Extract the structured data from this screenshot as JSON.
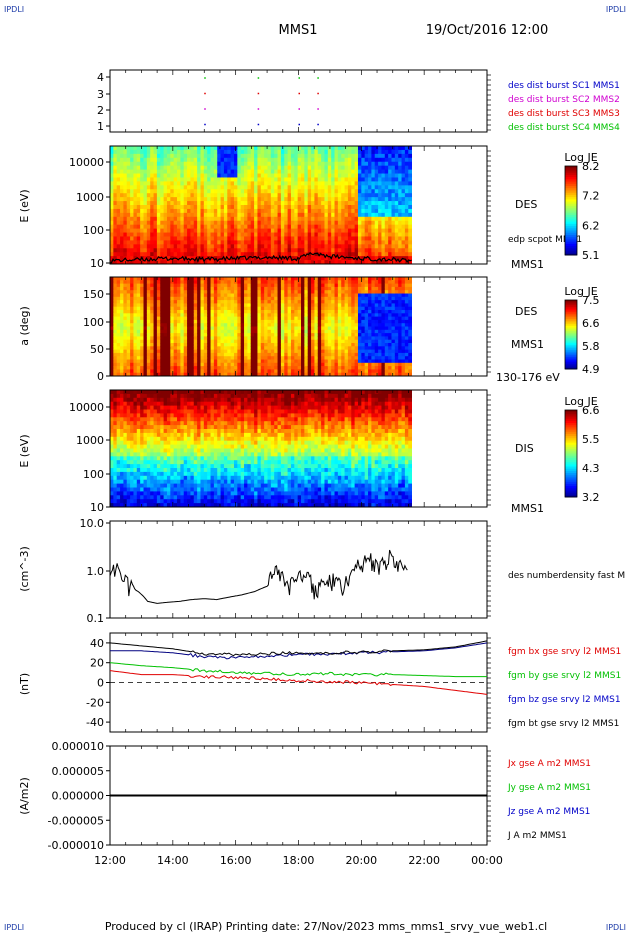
{
  "header": {
    "spacecraft": "MMS1",
    "date_time": "19/Oct/2016 12:00",
    "corner_tag": "IPDLI"
  },
  "footer": {
    "text": "Produced by cl (IRAP)   Printing date: 27/Nov/2023   mms_mms1_srvy_vue_web1.cl"
  },
  "time_axis": {
    "ticks": [
      "12:00",
      "14:00",
      "16:00",
      "18:00",
      "20:00",
      "22:00",
      "00:00"
    ],
    "data_end_hour": 21.6
  },
  "colors": {
    "blue": "#0000c8",
    "magenta": "#d000d0",
    "red": "#e00000",
    "green": "#00c000",
    "black": "#000000",
    "navy": "#000080"
  },
  "panels": {
    "burst": {
      "yticks": [
        "4",
        "3",
        "2",
        "1"
      ],
      "labels": [
        {
          "text": "des dist burst SC1 MMS1",
          "color": "#0000c8"
        },
        {
          "text": "des dist burst SC2 MMS2",
          "color": "#d000d0"
        },
        {
          "text": "des dist burst SC3 MMS3",
          "color": "#e00000"
        },
        {
          "text": "des dist burst SC4 MMS4",
          "color": "#00c000"
        }
      ]
    },
    "des_energy": {
      "ylabel": "E (eV)",
      "yticks": [
        "10000",
        "1000",
        "100",
        "10"
      ],
      "species": "DES",
      "overlay": "edp scpot MMS1",
      "sc": "MMS1",
      "cbar_title": "Log JE",
      "cbar_ticks": [
        "8.2",
        "7.2",
        "6.2",
        "5.1"
      ]
    },
    "des_pitch": {
      "ylabel": "a (deg)",
      "yticks": [
        "150",
        "100",
        "50",
        "0"
      ],
      "species": "DES",
      "sc": "MMS1",
      "energy_range": "130-176 eV",
      "cbar_title": "Log JE",
      "cbar_ticks": [
        "7.5",
        "6.6",
        "5.8",
        "4.9"
      ]
    },
    "dis_energy": {
      "ylabel": "E (eV)",
      "yticks": [
        "10000",
        "1000",
        "100",
        "10"
      ],
      "species": "DIS",
      "sc": "MMS1",
      "cbar_title": "Log JE",
      "cbar_ticks": [
        "6.6",
        "5.5",
        "4.3",
        "3.2"
      ]
    },
    "density": {
      "ylabel": "(cm^-3)",
      "yticks": [
        "10.0",
        "1.0",
        "0.1"
      ],
      "label": "des numberdensity fast M"
    },
    "bfield": {
      "ylabel": "(nT)",
      "yticks": [
        "40",
        "20",
        "0",
        "-20",
        "-40"
      ],
      "labels": [
        {
          "text": "fgm bx gse srvy l2 MMS1",
          "color": "#e00000"
        },
        {
          "text": "fgm by gse srvy l2 MMS1",
          "color": "#00c000"
        },
        {
          "text": "fgm bz gse srvy l2 MMS1",
          "color": "#0000c8"
        },
        {
          "text": "fgm bt gse srvy l2 MMS1",
          "color": "#000000"
        }
      ]
    },
    "current": {
      "ylabel": "(A/m2)",
      "yticks": [
        "0.000010",
        "0.000005",
        "0.000000",
        "-0.000005",
        "-0.000010"
      ],
      "labels": [
        {
          "text": "Jx gse A m2 MMS1",
          "color": "#e00000"
        },
        {
          "text": "Jy gse A m2 MMS1",
          "color": "#00c000"
        },
        {
          "text": "Jz gse A m2 MMS1",
          "color": "#0000c8"
        },
        {
          "text": "J A m2 MMS1",
          "color": "#000000"
        }
      ]
    }
  },
  "chart_data": [
    {
      "type": "scatter",
      "title": "",
      "ylim": [
        0.5,
        4.5
      ],
      "xlim_hours": [
        12,
        24
      ],
      "series": [
        {
          "name": "des dist burst SC1 MMS1",
          "x": [
            15.0,
            16.7,
            18.0,
            18.6
          ],
          "y": [
            1,
            1,
            1,
            1
          ]
        },
        {
          "name": "des dist burst SC2 MMS2",
          "x": [
            15.0,
            16.7,
            18.0,
            18.6
          ],
          "y": [
            2,
            2,
            2,
            2
          ]
        },
        {
          "name": "des dist burst SC3 MMS3",
          "x": [
            15.0,
            16.7,
            18.0,
            18.6
          ],
          "y": [
            3,
            3,
            3,
            3
          ]
        },
        {
          "name": "des dist burst SC4 MMS4",
          "x": [
            15.0,
            16.7,
            18.0,
            18.6
          ],
          "y": [
            4,
            4,
            4,
            4
          ]
        }
      ]
    },
    {
      "type": "heatmap",
      "ylabel": "E (eV)",
      "ylim": [
        10,
        30000
      ],
      "ylog": true,
      "zlim": [
        5.1,
        8.2
      ],
      "overlay_line": {
        "name": "edp scpot MMS1",
        "x_hours": [
          12.0,
          13.0,
          14.0,
          15.0,
          16.0,
          17.0,
          18.0,
          18.5,
          19.0,
          20.0,
          21.0,
          21.5
        ],
        "y_ev": [
          12,
          13,
          14,
          13,
          14,
          15,
          14,
          20,
          16,
          14,
          13,
          12
        ]
      }
    },
    {
      "type": "heatmap",
      "ylabel": "a (deg)",
      "ylim": [
        0,
        180
      ],
      "zlim": [
        4.9,
        7.5
      ]
    },
    {
      "type": "heatmap",
      "ylabel": "E (eV)",
      "ylim": [
        10,
        30000
      ],
      "ylog": true,
      "zlim": [
        3.2,
        6.6
      ]
    },
    {
      "type": "line",
      "ylabel": "(cm^-3)",
      "ylim": [
        0.1,
        10
      ],
      "ylog": true,
      "series": [
        {
          "name": "des numberdensity fast M",
          "x": [
            12.0,
            12.3,
            12.6,
            12.9,
            13.2,
            13.5,
            13.8,
            14.2,
            14.6,
            15.0,
            15.4,
            15.8,
            16.2,
            16.6,
            17.0,
            17.3,
            17.6,
            17.9,
            18.2,
            18.5,
            18.8,
            19.1,
            19.4,
            19.7,
            20.0,
            20.3,
            20.6,
            20.9,
            21.2,
            21.5
          ],
          "y": [
            1.2,
            1.0,
            0.45,
            0.35,
            0.22,
            0.2,
            0.21,
            0.22,
            0.24,
            0.25,
            0.24,
            0.27,
            0.3,
            0.35,
            0.45,
            1.1,
            0.4,
            0.6,
            0.9,
            0.35,
            0.5,
            0.6,
            0.4,
            0.8,
            1.4,
            1.6,
            1.1,
            1.8,
            1.3,
            0.8
          ]
        }
      ]
    },
    {
      "type": "line",
      "ylabel": "(nT)",
      "ylim": [
        -50,
        50
      ],
      "series": [
        {
          "name": "fgm bx gse srvy l2 MMS1",
          "x": [
            12,
            13,
            14,
            15,
            16,
            17,
            18,
            19,
            20,
            21,
            22,
            23,
            24
          ],
          "y": [
            12,
            8,
            8,
            6,
            5,
            4,
            2,
            1,
            0,
            -2,
            -4,
            -8,
            -12
          ]
        },
        {
          "name": "fgm by gse srvy l2 MMS1",
          "x": [
            12,
            13,
            14,
            15,
            16,
            17,
            18,
            19,
            20,
            21,
            22,
            23,
            24
          ],
          "y": [
            20,
            17,
            15,
            12,
            10,
            9,
            8,
            9,
            8,
            8,
            7,
            6,
            6
          ]
        },
        {
          "name": "fgm bz gse srvy l2 MMS1",
          "x": [
            12,
            13,
            14,
            15,
            16,
            17,
            18,
            19,
            20,
            21,
            22,
            23,
            24
          ],
          "y": [
            32,
            32,
            30,
            26,
            25,
            27,
            28,
            29,
            30,
            31,
            32,
            35,
            40
          ]
        },
        {
          "name": "fgm bt gse srvy l2 MMS1",
          "x": [
            12,
            13,
            14,
            15,
            16,
            17,
            18,
            19,
            20,
            21,
            22,
            23,
            24
          ],
          "y": [
            40,
            37,
            34,
            29,
            28,
            29,
            30,
            30,
            31,
            32,
            33,
            36,
            42
          ]
        }
      ]
    },
    {
      "type": "line",
      "ylabel": "(A/m2)",
      "ylim": [
        -1e-05,
        1e-05
      ],
      "series": [
        {
          "name": "J A m2 MMS1",
          "x": [
            12,
            24
          ],
          "y": [
            0,
            0
          ]
        }
      ]
    }
  ]
}
